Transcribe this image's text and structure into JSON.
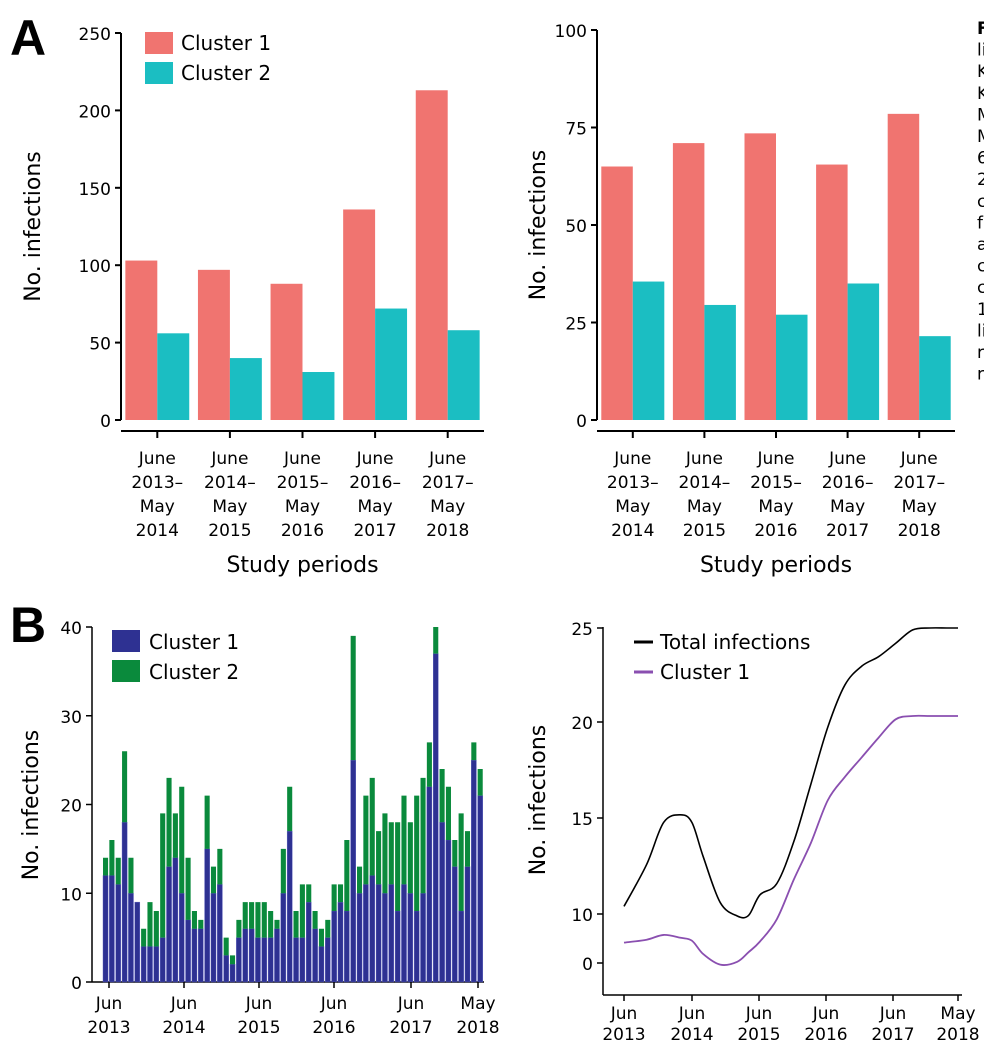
{
  "panels": {
    "a": "A",
    "b": "B"
  },
  "caption_fragment": [
    "F",
    "li",
    "K",
    "K",
    "M",
    "M",
    "6",
    "2",
    "c",
    "f",
    "a",
    "c",
    "c",
    "1",
    "li",
    "r",
    "r"
  ],
  "colors": {
    "cluster1_bar": "#f07470",
    "cluster2_bar": "#1bbec2",
    "cluster1_monthly": "#2e3192",
    "cluster2_monthly": "#0a8a3c",
    "total_line": "#000000",
    "cluster1_line": "#8a4fb0"
  },
  "chart_data": [
    {
      "id": "A-left",
      "type": "bar",
      "categories": [
        [
          "June",
          "2013–",
          "May",
          "2014"
        ],
        [
          "June",
          "2014–",
          "May",
          "2015"
        ],
        [
          "June",
          "2015–",
          "May",
          "2016"
        ],
        [
          "June",
          "2016–",
          "May",
          "2017"
        ],
        [
          "June",
          "2017–",
          "May",
          "2018"
        ]
      ],
      "series": [
        {
          "name": "Cluster 1",
          "values": [
            103,
            97,
            88,
            136,
            213
          ]
        },
        {
          "name": "Cluster 2",
          "values": [
            56,
            40,
            31,
            72,
            58
          ]
        }
      ],
      "xlabel": "Study periods",
      "ylabel": "No. infections",
      "ylim": [
        0,
        250
      ],
      "yticks": [
        0,
        50,
        100,
        150,
        200,
        250
      ],
      "legend": "top-left"
    },
    {
      "id": "A-right",
      "type": "bar",
      "categories": [
        [
          "June",
          "2013–",
          "May",
          "2014"
        ],
        [
          "June",
          "2014–",
          "May",
          "2015"
        ],
        [
          "June",
          "2015–",
          "May",
          "2016"
        ],
        [
          "June",
          "2016–",
          "May",
          "2017"
        ],
        [
          "June",
          "2017–",
          "May",
          "2018"
        ]
      ],
      "series": [
        {
          "name": "Cluster 1",
          "values": [
            65,
            71,
            73.5,
            65.5,
            78.5
          ]
        },
        {
          "name": "Cluster 2",
          "values": [
            35.5,
            29.5,
            27,
            35,
            21.5
          ]
        }
      ],
      "xlabel": "Study periods",
      "ylabel": "No. infections",
      "ylim": [
        0,
        100
      ],
      "yticks": [
        0,
        25,
        50,
        75,
        100
      ]
    },
    {
      "id": "B-left",
      "type": "bar",
      "stacked": true,
      "categories": [
        "2013-06",
        "2013-07",
        "2013-08",
        "2013-09",
        "2013-10",
        "2013-11",
        "2013-12",
        "2014-01",
        "2014-02",
        "2014-03",
        "2014-04",
        "2014-05",
        "2014-06",
        "2014-07",
        "2014-08",
        "2014-09",
        "2014-10",
        "2014-11",
        "2014-12",
        "2015-01",
        "2015-02",
        "2015-03",
        "2015-04",
        "2015-05",
        "2015-06",
        "2015-07",
        "2015-08",
        "2015-09",
        "2015-10",
        "2015-11",
        "2015-12",
        "2016-01",
        "2016-02",
        "2016-03",
        "2016-04",
        "2016-05",
        "2016-06",
        "2016-07",
        "2016-08",
        "2016-09",
        "2016-10",
        "2016-11",
        "2016-12",
        "2017-01",
        "2017-02",
        "2017-03",
        "2017-04",
        "2017-05",
        "2017-06",
        "2017-07",
        "2017-08",
        "2017-09",
        "2017-10",
        "2017-11",
        "2017-12",
        "2018-01",
        "2018-02",
        "2018-03",
        "2018-04",
        "2018-05"
      ],
      "series": [
        {
          "name": "Cluster 1",
          "values": [
            12,
            12,
            11,
            18,
            10,
            9,
            4,
            4,
            4,
            5,
            13,
            14,
            10,
            7,
            6,
            6,
            15,
            10,
            11,
            3,
            2,
            5,
            6,
            6,
            5,
            5,
            5,
            6,
            10,
            17,
            5,
            5,
            9,
            6,
            4,
            5,
            8,
            9,
            8,
            25,
            10,
            11,
            12,
            11,
            10,
            11,
            8,
            11,
            10,
            8,
            10,
            22,
            37,
            18,
            16,
            13,
            8,
            13,
            25,
            21
          ]
        },
        {
          "name": "Cluster 2",
          "values": [
            2,
            4,
            3,
            8,
            4,
            0,
            2,
            5,
            4,
            14,
            10,
            5,
            12,
            7,
            2,
            1,
            6,
            3,
            4,
            2,
            1,
            2,
            3,
            3,
            4,
            4,
            3,
            1,
            5,
            5,
            3,
            6,
            2,
            2,
            2,
            2,
            3,
            2,
            8,
            14,
            3,
            10,
            11,
            6,
            9,
            7,
            10,
            10,
            8,
            13,
            13,
            5,
            3,
            6,
            6,
            3,
            11,
            4,
            2,
            3
          ]
        }
      ],
      "ylabel": "No. infections",
      "ylim": [
        0,
        40
      ],
      "yticks": [
        0,
        10,
        20,
        30,
        40
      ],
      "xticks": [
        [
          "Jun",
          "2013"
        ],
        [
          "Jun",
          "2014"
        ],
        [
          "Jun",
          "2015"
        ],
        [
          "Jun",
          "2016"
        ],
        [
          "Jun",
          "2017"
        ],
        [
          "May",
          "2018"
        ]
      ],
      "legend": "top-left"
    },
    {
      "id": "B-right",
      "type": "line",
      "x": [
        "2013-06",
        "2013-10",
        "2014-01",
        "2014-04",
        "2014-06",
        "2014-08",
        "2014-11",
        "2015-02",
        "2015-04",
        "2015-06",
        "2015-09",
        "2015-12",
        "2016-03",
        "2016-06",
        "2016-09",
        "2016-12",
        "2017-03",
        "2017-06",
        "2017-09",
        "2017-12",
        "2018-03",
        "2018-05"
      ],
      "series": [
        {
          "name": "Total infections",
          "values": [
            10.4,
            12.6,
            14.8,
            15.2,
            14.8,
            13.0,
            10.6,
            9.6,
            9.7,
            11.0,
            11.6,
            13.8,
            16.8,
            19.8,
            22.0,
            23.0,
            23.5,
            24.2,
            24.9,
            25.0,
            25.0,
            25.0
          ]
        },
        {
          "name": "Cluster 1",
          "values": [
            6.5,
            6.8,
            7.3,
            7.0,
            6.7,
            5.3,
            4.2,
            4.5,
            5.5,
            6.6,
            8.2,
            10.6,
            12.8,
            15.4,
            16.8,
            18.0,
            19.2,
            20.3,
            20.5,
            20.5,
            20.5,
            20.5
          ]
        }
      ],
      "ylabel": "No. infections",
      "yticks": [
        "0",
        "10",
        "15",
        "20",
        "25"
      ],
      "xticks": [
        [
          "Jun",
          "2013"
        ],
        [
          "Jun",
          "2014"
        ],
        [
          "Jun",
          "2015"
        ],
        [
          "Jun",
          "2016"
        ],
        [
          "Jun",
          "2017"
        ],
        [
          "May",
          "2018"
        ]
      ],
      "legend": "top-left"
    }
  ]
}
